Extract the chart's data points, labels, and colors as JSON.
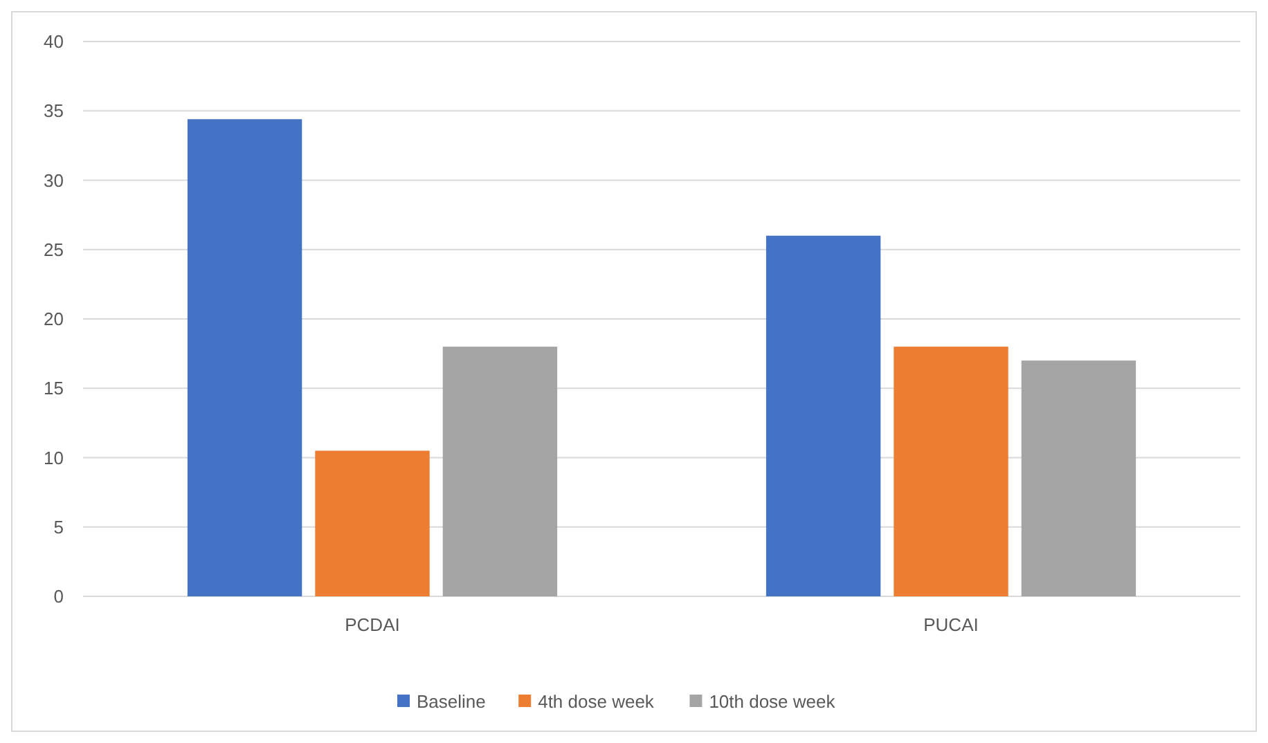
{
  "chart_data": {
    "type": "bar",
    "categories": [
      "PCDAI",
      "PUCAI"
    ],
    "series": [
      {
        "name": "Baseline",
        "color": "#4472c4",
        "values": [
          34.4,
          26
        ]
      },
      {
        "name": "4th dose week",
        "color": "#ed7d31",
        "values": [
          10.5,
          18
        ]
      },
      {
        "name": "10th dose week",
        "color": "#a5a5a5",
        "values": [
          18,
          17
        ]
      }
    ],
    "ylim": [
      0,
      40
    ],
    "yticks": [
      0,
      5,
      10,
      15,
      20,
      25,
      30,
      35,
      40
    ],
    "grid": "y",
    "legend": "bottom"
  }
}
